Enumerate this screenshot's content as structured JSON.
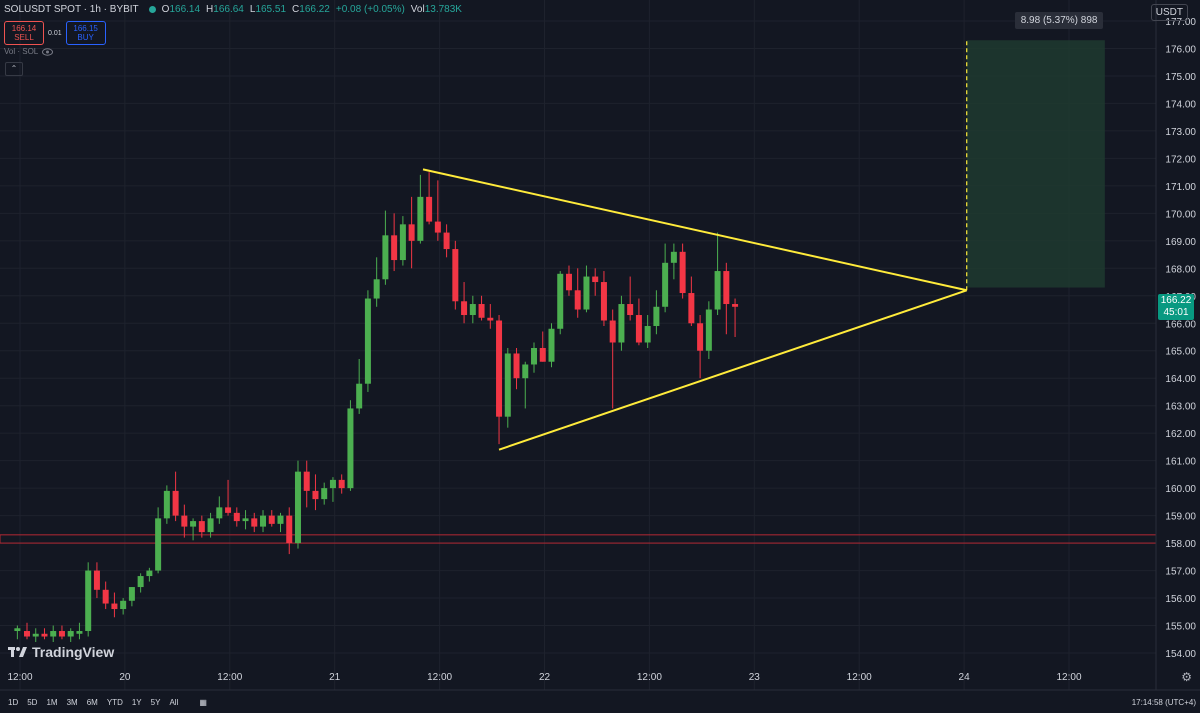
{
  "legend": {
    "symbol": "SOLUSDT SPOT · 1h · BYBIT",
    "open_label": "O",
    "open": "166.14",
    "high_label": "H",
    "high": "166.64",
    "low_label": "L",
    "low": "165.51",
    "close_label": "C",
    "close": "166.22",
    "change": "+0.08 (+0.05%)",
    "vol_label": "Vol",
    "vol": "13.783K"
  },
  "trade": {
    "sell_price": "166.14",
    "sell_label": "SELL",
    "spread": "0.01",
    "buy_price": "166.15",
    "buy_label": "BUY"
  },
  "indicator": {
    "label": "Vol · SOL"
  },
  "quote_currency": "USDT",
  "last_price_label": {
    "price": "166.22",
    "countdown": "45:01"
  },
  "measure_label": "8.98 (5.37%) 898",
  "logo_text": "TradingView",
  "ranges": [
    "1D",
    "5D",
    "1M",
    "3M",
    "6M",
    "YTD",
    "1Y",
    "5Y",
    "All"
  ],
  "clock": "17:14:58 (UTC+4)",
  "colors": {
    "background": "#131722",
    "up": "#26a69a",
    "up_candle": "#4caf50",
    "down": "#f23645",
    "triangle": "#ffeb3b",
    "target_zone": "#1e3a2f",
    "support": "#b22833",
    "grid": "#1e222d"
  },
  "chart_data": {
    "type": "candlestick",
    "title": "SOLUSDT SPOT · 1h · BYBIT",
    "ylim": [
      153.6,
      177.6
    ],
    "y_ticks": [
      154,
      155,
      156,
      157,
      158,
      159,
      160,
      161,
      162,
      163,
      164,
      165,
      166,
      167,
      168,
      169,
      170,
      171,
      172,
      173,
      174,
      175,
      176,
      177
    ],
    "x_ticks": [
      {
        "label": "12:00",
        "t": 0
      },
      {
        "label": "20",
        "t": 12
      },
      {
        "label": "12:00",
        "t": 24
      },
      {
        "label": "21",
        "t": 36
      },
      {
        "label": "12:00",
        "t": 48
      },
      {
        "label": "22",
        "t": 60
      },
      {
        "label": "12:00",
        "t": 72
      },
      {
        "label": "23",
        "t": 84
      },
      {
        "label": "12:00",
        "t": 96
      },
      {
        "label": "24",
        "t": 108
      },
      {
        "label": "12:00",
        "t": 120
      }
    ],
    "candles_note": "t = hours since first visible tick; o,h,l,c in USDT",
    "candles": [
      {
        "t": -0.3,
        "o": 154.8,
        "h": 155.0,
        "l": 154.5,
        "c": 154.9
      },
      {
        "t": 0.8,
        "o": 154.8,
        "h": 155.1,
        "l": 154.5,
        "c": 154.6
      },
      {
        "t": 1.8,
        "o": 154.6,
        "h": 154.9,
        "l": 154.4,
        "c": 154.7
      },
      {
        "t": 2.8,
        "o": 154.7,
        "h": 154.9,
        "l": 154.5,
        "c": 154.6
      },
      {
        "t": 3.8,
        "o": 154.6,
        "h": 155.0,
        "l": 154.4,
        "c": 154.8
      },
      {
        "t": 4.8,
        "o": 154.8,
        "h": 155.0,
        "l": 154.5,
        "c": 154.6
      },
      {
        "t": 5.8,
        "o": 154.6,
        "h": 154.9,
        "l": 154.4,
        "c": 154.8
      },
      {
        "t": 6.8,
        "o": 154.7,
        "h": 155.1,
        "l": 154.5,
        "c": 154.8
      },
      {
        "t": 7.8,
        "o": 154.8,
        "h": 157.3,
        "l": 154.6,
        "c": 157.0
      },
      {
        "t": 8.8,
        "o": 157.0,
        "h": 157.3,
        "l": 156.0,
        "c": 156.3
      },
      {
        "t": 9.8,
        "o": 156.3,
        "h": 156.6,
        "l": 155.6,
        "c": 155.8
      },
      {
        "t": 10.8,
        "o": 155.8,
        "h": 156.2,
        "l": 155.3,
        "c": 155.6
      },
      {
        "t": 11.8,
        "o": 155.6,
        "h": 156.0,
        "l": 155.4,
        "c": 155.9
      },
      {
        "t": 12.8,
        "o": 155.9,
        "h": 156.4,
        "l": 155.7,
        "c": 156.4
      },
      {
        "t": 13.8,
        "o": 156.4,
        "h": 156.9,
        "l": 156.2,
        "c": 156.8
      },
      {
        "t": 14.8,
        "o": 156.8,
        "h": 157.1,
        "l": 156.6,
        "c": 157.0
      },
      {
        "t": 15.8,
        "o": 157.0,
        "h": 159.3,
        "l": 156.9,
        "c": 158.9
      },
      {
        "t": 16.8,
        "o": 158.9,
        "h": 160.1,
        "l": 158.7,
        "c": 159.9
      },
      {
        "t": 17.8,
        "o": 159.9,
        "h": 160.6,
        "l": 158.8,
        "c": 159.0
      },
      {
        "t": 18.8,
        "o": 159.0,
        "h": 159.4,
        "l": 158.2,
        "c": 158.6
      },
      {
        "t": 19.8,
        "o": 158.6,
        "h": 158.9,
        "l": 158.1,
        "c": 158.8
      },
      {
        "t": 20.8,
        "o": 158.8,
        "h": 159.0,
        "l": 158.2,
        "c": 158.4
      },
      {
        "t": 21.8,
        "o": 158.4,
        "h": 159.1,
        "l": 158.2,
        "c": 158.9
      },
      {
        "t": 22.8,
        "o": 158.9,
        "h": 159.7,
        "l": 158.7,
        "c": 159.3
      },
      {
        "t": 23.8,
        "o": 159.3,
        "h": 160.3,
        "l": 159.0,
        "c": 159.1
      },
      {
        "t": 24.8,
        "o": 159.1,
        "h": 159.3,
        "l": 158.6,
        "c": 158.8
      },
      {
        "t": 25.8,
        "o": 158.8,
        "h": 159.2,
        "l": 158.5,
        "c": 158.9
      },
      {
        "t": 26.8,
        "o": 158.9,
        "h": 159.1,
        "l": 158.4,
        "c": 158.6
      },
      {
        "t": 27.8,
        "o": 158.6,
        "h": 159.2,
        "l": 158.4,
        "c": 159.0
      },
      {
        "t": 28.8,
        "o": 159.0,
        "h": 159.2,
        "l": 158.6,
        "c": 158.7
      },
      {
        "t": 29.8,
        "o": 158.7,
        "h": 159.1,
        "l": 158.4,
        "c": 159.0
      },
      {
        "t": 30.8,
        "o": 159.0,
        "h": 159.3,
        "l": 157.6,
        "c": 158.0
      },
      {
        "t": 31.8,
        "o": 158.0,
        "h": 161.0,
        "l": 157.8,
        "c": 160.6
      },
      {
        "t": 32.8,
        "o": 160.6,
        "h": 161.0,
        "l": 159.3,
        "c": 159.9
      },
      {
        "t": 33.8,
        "o": 159.9,
        "h": 160.5,
        "l": 159.2,
        "c": 159.6
      },
      {
        "t": 34.8,
        "o": 159.6,
        "h": 160.2,
        "l": 159.4,
        "c": 160.0
      },
      {
        "t": 35.8,
        "o": 160.0,
        "h": 160.4,
        "l": 159.5,
        "c": 160.3
      },
      {
        "t": 36.8,
        "o": 160.3,
        "h": 160.5,
        "l": 159.8,
        "c": 160.0
      },
      {
        "t": 37.8,
        "o": 160.0,
        "h": 163.2,
        "l": 159.9,
        "c": 162.9
      },
      {
        "t": 38.8,
        "o": 162.9,
        "h": 164.7,
        "l": 162.7,
        "c": 163.8
      },
      {
        "t": 39.8,
        "o": 163.8,
        "h": 167.2,
        "l": 163.5,
        "c": 166.9
      },
      {
        "t": 40.8,
        "o": 166.9,
        "h": 168.4,
        "l": 166.6,
        "c": 167.6
      },
      {
        "t": 41.8,
        "o": 167.6,
        "h": 170.1,
        "l": 167.4,
        "c": 169.2
      },
      {
        "t": 42.8,
        "o": 169.2,
        "h": 170.0,
        "l": 167.9,
        "c": 168.3
      },
      {
        "t": 43.8,
        "o": 168.3,
        "h": 169.9,
        "l": 168.1,
        "c": 169.6
      },
      {
        "t": 44.8,
        "o": 169.6,
        "h": 170.6,
        "l": 168.0,
        "c": 169.0
      },
      {
        "t": 45.8,
        "o": 169.0,
        "h": 171.4,
        "l": 168.9,
        "c": 170.6
      },
      {
        "t": 46.8,
        "o": 170.6,
        "h": 171.5,
        "l": 169.6,
        "c": 169.7
      },
      {
        "t": 47.8,
        "o": 169.7,
        "h": 171.2,
        "l": 169.0,
        "c": 169.3
      },
      {
        "t": 48.8,
        "o": 169.3,
        "h": 169.6,
        "l": 168.4,
        "c": 168.7
      },
      {
        "t": 49.8,
        "o": 168.7,
        "h": 169.0,
        "l": 166.5,
        "c": 166.8
      },
      {
        "t": 50.8,
        "o": 166.8,
        "h": 167.5,
        "l": 166.0,
        "c": 166.3
      },
      {
        "t": 51.8,
        "o": 166.3,
        "h": 167.0,
        "l": 166.0,
        "c": 166.7
      },
      {
        "t": 52.8,
        "o": 166.7,
        "h": 167.0,
        "l": 166.1,
        "c": 166.2
      },
      {
        "t": 53.8,
        "o": 166.2,
        "h": 166.7,
        "l": 165.8,
        "c": 166.1
      },
      {
        "t": 54.8,
        "o": 166.1,
        "h": 166.3,
        "l": 161.6,
        "c": 162.6
      },
      {
        "t": 55.8,
        "o": 162.6,
        "h": 165.1,
        "l": 162.2,
        "c": 164.9
      },
      {
        "t": 56.8,
        "o": 164.9,
        "h": 165.1,
        "l": 163.6,
        "c": 164.0
      },
      {
        "t": 57.8,
        "o": 164.0,
        "h": 164.6,
        "l": 162.9,
        "c": 164.5
      },
      {
        "t": 58.8,
        "o": 164.5,
        "h": 165.3,
        "l": 164.2,
        "c": 165.1
      },
      {
        "t": 59.8,
        "o": 165.1,
        "h": 165.7,
        "l": 164.6,
        "c": 164.6
      },
      {
        "t": 60.8,
        "o": 164.6,
        "h": 166.0,
        "l": 164.4,
        "c": 165.8
      },
      {
        "t": 61.8,
        "o": 165.8,
        "h": 167.9,
        "l": 165.6,
        "c": 167.8
      },
      {
        "t": 62.8,
        "o": 167.8,
        "h": 168.1,
        "l": 167.0,
        "c": 167.2
      },
      {
        "t": 63.8,
        "o": 167.2,
        "h": 168.0,
        "l": 166.2,
        "c": 166.5
      },
      {
        "t": 64.8,
        "o": 166.5,
        "h": 168.1,
        "l": 166.4,
        "c": 167.7
      },
      {
        "t": 65.8,
        "o": 167.7,
        "h": 168.0,
        "l": 167.0,
        "c": 167.5
      },
      {
        "t": 66.8,
        "o": 167.5,
        "h": 167.9,
        "l": 165.9,
        "c": 166.1
      },
      {
        "t": 67.8,
        "o": 166.1,
        "h": 166.5,
        "l": 162.9,
        "c": 165.3
      },
      {
        "t": 68.8,
        "o": 165.3,
        "h": 167.0,
        "l": 165.0,
        "c": 166.7
      },
      {
        "t": 69.8,
        "o": 166.7,
        "h": 167.7,
        "l": 166.1,
        "c": 166.3
      },
      {
        "t": 70.8,
        "o": 166.3,
        "h": 166.9,
        "l": 165.2,
        "c": 165.3
      },
      {
        "t": 71.8,
        "o": 165.3,
        "h": 166.3,
        "l": 165.1,
        "c": 165.9
      },
      {
        "t": 72.8,
        "o": 165.9,
        "h": 167.2,
        "l": 165.6,
        "c": 166.6
      },
      {
        "t": 73.8,
        "o": 166.6,
        "h": 168.9,
        "l": 166.4,
        "c": 168.2
      },
      {
        "t": 74.8,
        "o": 168.2,
        "h": 168.9,
        "l": 167.6,
        "c": 168.6
      },
      {
        "t": 75.8,
        "o": 168.6,
        "h": 168.9,
        "l": 166.9,
        "c": 167.1
      },
      {
        "t": 76.8,
        "o": 167.1,
        "h": 167.7,
        "l": 165.9,
        "c": 166.0
      },
      {
        "t": 77.8,
        "o": 166.0,
        "h": 166.3,
        "l": 164.0,
        "c": 165.0
      },
      {
        "t": 78.8,
        "o": 165.0,
        "h": 166.8,
        "l": 164.7,
        "c": 166.5
      },
      {
        "t": 79.8,
        "o": 166.5,
        "h": 169.3,
        "l": 166.3,
        "c": 167.9
      },
      {
        "t": 80.8,
        "o": 167.9,
        "h": 168.2,
        "l": 165.6,
        "c": 166.7
      },
      {
        "t": 81.8,
        "o": 166.7,
        "h": 166.9,
        "l": 165.5,
        "c": 166.6
      }
    ],
    "annotations": {
      "triangle_upper": [
        {
          "t": 46.1,
          "price": 171.6
        },
        {
          "t": 108.3,
          "price": 167.2
        }
      ],
      "triangle_lower": [
        {
          "t": 54.8,
          "price": 161.4
        },
        {
          "t": 108.3,
          "price": 167.2
        }
      ],
      "target_zone": {
        "t_start": 108.3,
        "t_end": 124.1,
        "price_low": 167.3,
        "price_high": 176.3
      },
      "target_line": {
        "t": 108.3,
        "price_from": 167.2,
        "price_to": 176.3
      },
      "support_zone": {
        "price_low": 158.0,
        "price_high": 158.3
      }
    }
  }
}
